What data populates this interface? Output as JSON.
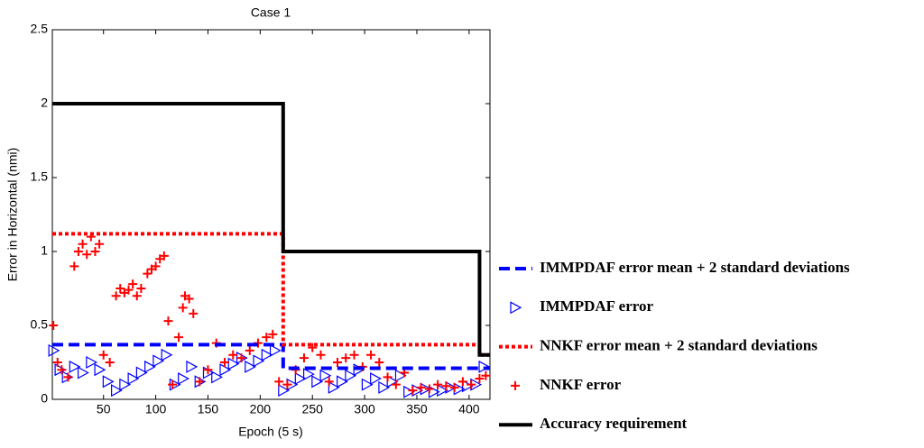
{
  "chart_data": {
    "type": "scatter",
    "title": "Case 1",
    "x_label": "Epoch (5 s)",
    "y_label": "Error in Horizontal (nmi)",
    "xlim": [
      1,
      420
    ],
    "ylim": [
      0,
      2.5
    ],
    "xticks": [
      50,
      100,
      150,
      200,
      250,
      300,
      350,
      400
    ],
    "yticks": [
      0,
      0.5,
      1,
      1.5,
      2,
      2.5
    ],
    "legend": "right",
    "series": [
      {
        "name": "IMMPDAF error mean + 2 standard deviations",
        "color": "#0000ff",
        "style": "dashed",
        "x": [
          1,
          222,
          222,
          410,
          410,
          420
        ],
        "values": [
          0.37,
          0.37,
          0.21,
          0.21,
          0.21,
          0.21
        ]
      },
      {
        "name": "IMMPDAF error",
        "color": "#0000ff",
        "style": "triangle",
        "x": [
          2,
          8,
          15,
          22,
          30,
          38,
          46,
          54,
          62,
          70,
          78,
          86,
          94,
          102,
          110,
          118,
          126,
          134,
          142,
          150,
          158,
          166,
          174,
          182,
          190,
          198,
          206,
          214,
          222,
          230,
          238,
          246,
          254,
          262,
          270,
          278,
          286,
          294,
          302,
          310,
          318,
          326,
          334,
          342,
          350,
          358,
          366,
          374,
          382,
          390,
          398,
          406,
          414
        ],
        "values": [
          0.33,
          0.2,
          0.15,
          0.22,
          0.18,
          0.25,
          0.2,
          0.12,
          0.06,
          0.1,
          0.14,
          0.18,
          0.22,
          0.26,
          0.3,
          0.1,
          0.14,
          0.22,
          0.12,
          0.18,
          0.15,
          0.2,
          0.24,
          0.28,
          0.22,
          0.26,
          0.3,
          0.33,
          0.06,
          0.1,
          0.14,
          0.17,
          0.12,
          0.16,
          0.08,
          0.12,
          0.16,
          0.2,
          0.1,
          0.14,
          0.08,
          0.12,
          0.16,
          0.05,
          0.06,
          0.07,
          0.05,
          0.06,
          0.08,
          0.07,
          0.09,
          0.1,
          0.22
        ]
      },
      {
        "name": "NNKF error mean + 2 standard deviations",
        "color": "#ff0000",
        "style": "dotted",
        "x": [
          1,
          222,
          222,
          410,
          410,
          420
        ],
        "values": [
          1.12,
          1.12,
          0.37,
          0.37,
          0.3,
          0.3
        ]
      },
      {
        "name": "NNKF error",
        "color": "#ff0000",
        "style": "plus",
        "x": [
          2,
          6,
          10,
          16,
          22,
          26,
          30,
          34,
          38,
          42,
          46,
          50,
          56,
          62,
          66,
          70,
          74,
          78,
          82,
          86,
          92,
          96,
          100,
          104,
          108,
          112,
          116,
          122,
          126,
          128,
          132,
          136,
          142,
          150,
          158,
          166,
          174,
          182,
          190,
          198,
          206,
          212,
          218,
          226,
          234,
          242,
          250,
          258,
          266,
          274,
          282,
          290,
          298,
          306,
          314,
          322,
          330,
          338,
          346,
          354,
          362,
          370,
          378,
          386,
          394,
          402,
          410,
          416
        ],
        "values": [
          0.5,
          0.25,
          0.2,
          0.15,
          0.9,
          1.0,
          1.05,
          0.98,
          1.1,
          1.0,
          1.05,
          0.3,
          0.25,
          0.7,
          0.75,
          0.72,
          0.74,
          0.78,
          0.7,
          0.75,
          0.85,
          0.88,
          0.9,
          0.95,
          0.97,
          0.53,
          0.1,
          0.42,
          0.62,
          0.7,
          0.68,
          0.58,
          0.12,
          0.2,
          0.38,
          0.25,
          0.3,
          0.28,
          0.33,
          0.38,
          0.42,
          0.44,
          0.12,
          0.1,
          0.2,
          0.28,
          0.35,
          0.3,
          0.12,
          0.25,
          0.28,
          0.3,
          0.22,
          0.3,
          0.25,
          0.15,
          0.1,
          0.18,
          0.06,
          0.08,
          0.07,
          0.1,
          0.09,
          0.08,
          0.12,
          0.1,
          0.14,
          0.16
        ]
      },
      {
        "name": "Accuracy requirement",
        "color": "#000000",
        "style": "solid",
        "x": [
          1,
          222,
          222,
          410,
          410,
          420
        ],
        "values": [
          2,
          2,
          1,
          1,
          0.3,
          0.3
        ]
      }
    ]
  }
}
